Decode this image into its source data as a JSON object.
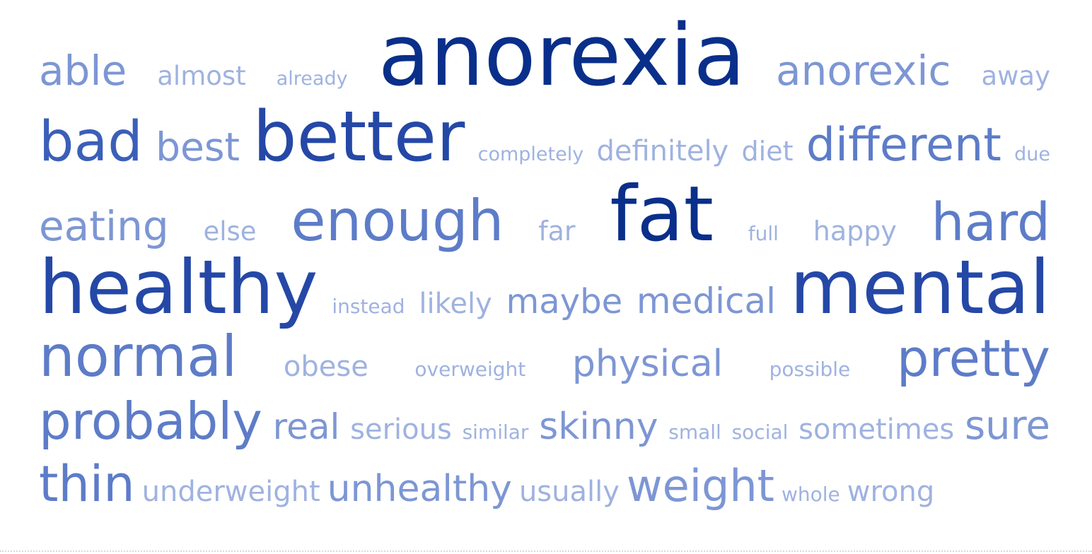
{
  "word_cloud": {
    "colors": [
      "#0a2f8a",
      "#2548a7",
      "#3b5fb9",
      "#5d7cc8",
      "#7d96d4",
      "#9fb2e0"
    ],
    "rows": [
      [
        {
          "text": "able",
          "size": 58,
          "shade": 4
        },
        {
          "text": "almost",
          "size": 37,
          "shade": 5
        },
        {
          "text": "already",
          "size": 27,
          "shade": 5
        },
        {
          "text": "anorexia",
          "size": 120,
          "shade": 0
        },
        {
          "text": "anorexic",
          "size": 58,
          "shade": 4
        },
        {
          "text": "away",
          "size": 37,
          "shade": 5
        }
      ],
      [
        {
          "text": "bad",
          "size": 78,
          "shade": 2
        },
        {
          "text": "best",
          "size": 55,
          "shade": 4
        },
        {
          "text": "better",
          "size": 98,
          "shade": 1
        },
        {
          "text": "completely",
          "size": 27,
          "shade": 5
        },
        {
          "text": "definitely",
          "size": 40,
          "shade": 5
        },
        {
          "text": "diet",
          "size": 38,
          "shade": 5
        },
        {
          "text": "different",
          "size": 65,
          "shade": 3
        },
        {
          "text": "due",
          "size": 27,
          "shade": 5
        }
      ],
      [
        {
          "text": "eating",
          "size": 58,
          "shade": 4
        },
        {
          "text": "else",
          "size": 37,
          "shade": 5
        },
        {
          "text": "enough",
          "size": 80,
          "shade": 3
        },
        {
          "text": "far",
          "size": 38,
          "shade": 5
        },
        {
          "text": "fat",
          "size": 108,
          "shade": 0
        },
        {
          "text": "full",
          "size": 28,
          "shade": 5
        },
        {
          "text": "happy",
          "size": 38,
          "shade": 5
        },
        {
          "text": "hard",
          "size": 74,
          "shade": 3
        }
      ],
      [
        {
          "text": "healthy",
          "size": 105,
          "shade": 1
        },
        {
          "text": "instead",
          "size": 28,
          "shade": 5
        },
        {
          "text": "likely",
          "size": 40,
          "shade": 5
        },
        {
          "text": "maybe",
          "size": 48,
          "shade": 4
        },
        {
          "text": "medical",
          "size": 50,
          "shade": 4
        },
        {
          "text": "mental",
          "size": 105,
          "shade": 1
        }
      ],
      [
        {
          "text": "normal",
          "size": 80,
          "shade": 3
        },
        {
          "text": "obese",
          "size": 40,
          "shade": 5
        },
        {
          "text": "overweight",
          "size": 28,
          "shade": 5
        },
        {
          "text": "physical",
          "size": 52,
          "shade": 4
        },
        {
          "text": "possible",
          "size": 28,
          "shade": 5
        },
        {
          "text": "pretty",
          "size": 72,
          "shade": 3
        }
      ],
      [
        {
          "text": "probably",
          "size": 72,
          "shade": 3
        },
        {
          "text": "real",
          "size": 50,
          "shade": 4
        },
        {
          "text": "serious",
          "size": 40,
          "shade": 5
        },
        {
          "text": "similar",
          "size": 28,
          "shade": 5
        },
        {
          "text": "skinny",
          "size": 52,
          "shade": 4
        },
        {
          "text": "small",
          "size": 28,
          "shade": 5
        },
        {
          "text": "social",
          "size": 28,
          "shade": 5
        },
        {
          "text": "sometimes",
          "size": 40,
          "shade": 5
        },
        {
          "text": "sure",
          "size": 56,
          "shade": 4
        }
      ],
      [
        {
          "text": "thin",
          "size": 70,
          "shade": 3
        },
        {
          "text": "underweight",
          "size": 40,
          "shade": 5
        },
        {
          "text": "unhealthy",
          "size": 52,
          "shade": 4
        },
        {
          "text": "usually",
          "size": 40,
          "shade": 5
        },
        {
          "text": "weight",
          "size": 62,
          "shade": 4
        },
        {
          "text": "whole",
          "size": 28,
          "shade": 5
        },
        {
          "text": "wrong",
          "size": 40,
          "shade": 5
        }
      ]
    ]
  }
}
